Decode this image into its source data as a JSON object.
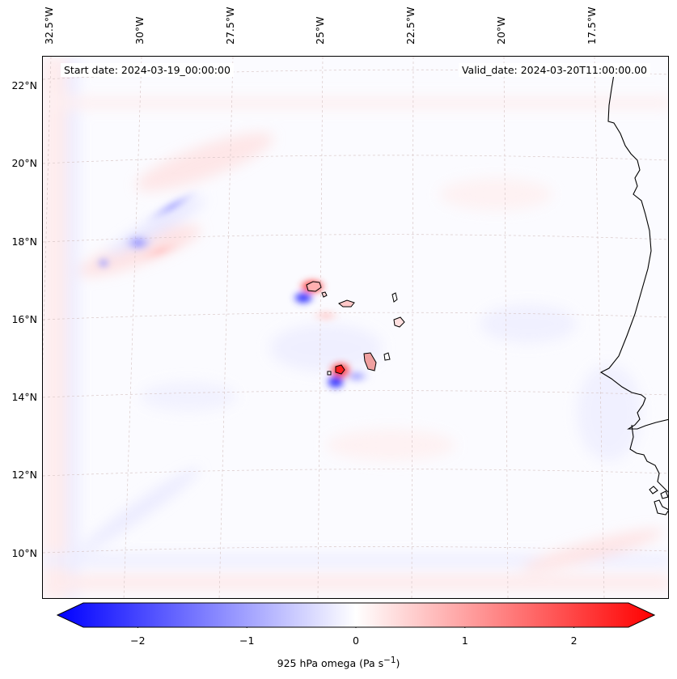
{
  "map": {
    "start_date": "Start date: 2024-03-19_00:00:00",
    "valid_date": "Valid_date: 2024-03-20T11:00:00.00",
    "lon_labels": [
      "32.5°W",
      "30°W",
      "27.5°W",
      "25°W",
      "22.5°W",
      "20°W",
      "17.5°W"
    ],
    "lat_labels": [
      "22°N",
      "20°N",
      "18°N",
      "16°N",
      "14°N",
      "12°N",
      "10°N"
    ],
    "region": "Cape Verde Islands and West African coast"
  },
  "colorbar": {
    "ticks": [
      "−2",
      "−1",
      "0",
      "1",
      "2"
    ],
    "tick_values": [
      -2,
      -1,
      0,
      1,
      2
    ],
    "range": [
      -2.5,
      2.5
    ],
    "label": "925 hPa omega (Pa s",
    "label_sup": "−1",
    "label_end": ")",
    "colors": {
      "min": "#0000ff",
      "mid": "#ffffff",
      "max": "#ff0000"
    }
  }
}
